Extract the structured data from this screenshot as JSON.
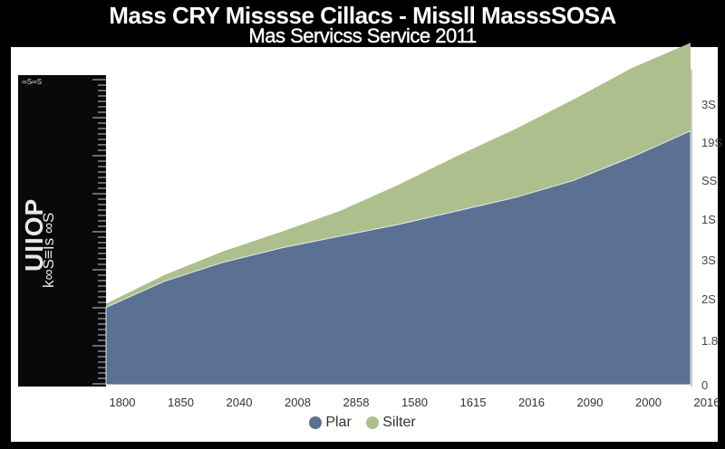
{
  "chart_data": {
    "type": "area",
    "stacked": true,
    "title": "Mass CRY Misssse Cillacs - Missll MasssSOSA",
    "subtitle": "Mas Servicss Service 2011",
    "xlabel": "",
    "ylabel": "UIIOP",
    "ylabel_secondary": "k∞S≡Is ∞S",
    "rail_label": "∞S∞S",
    "x_tick_labels": [
      "1800",
      "1850",
      "2040",
      "2008",
      "2858",
      "1580",
      "1615",
      "2016",
      "2090",
      "2000",
      "2016"
    ],
    "y_tick_labels_right": [
      "0",
      "1.8",
      "2S",
      "3S",
      "1S",
      "SS",
      "19S",
      "3S"
    ],
    "ylim": [
      0,
      35
    ],
    "grid": false,
    "legend_position": "bottom",
    "series": [
      {
        "name": "Plar",
        "color": "#5a7194",
        "values": [
          8.6,
          11.5,
          13.6,
          15.2,
          16.5,
          17.8,
          19.3,
          20.8,
          22.7,
          25.3,
          28.2
        ]
      },
      {
        "name": "Silter",
        "color": "#adbf8c",
        "values": [
          0.4,
          0.7,
          1.2,
          1.8,
          2.8,
          4.4,
          6.1,
          7.6,
          9.0,
          9.9,
          9.8
        ]
      }
    ]
  }
}
